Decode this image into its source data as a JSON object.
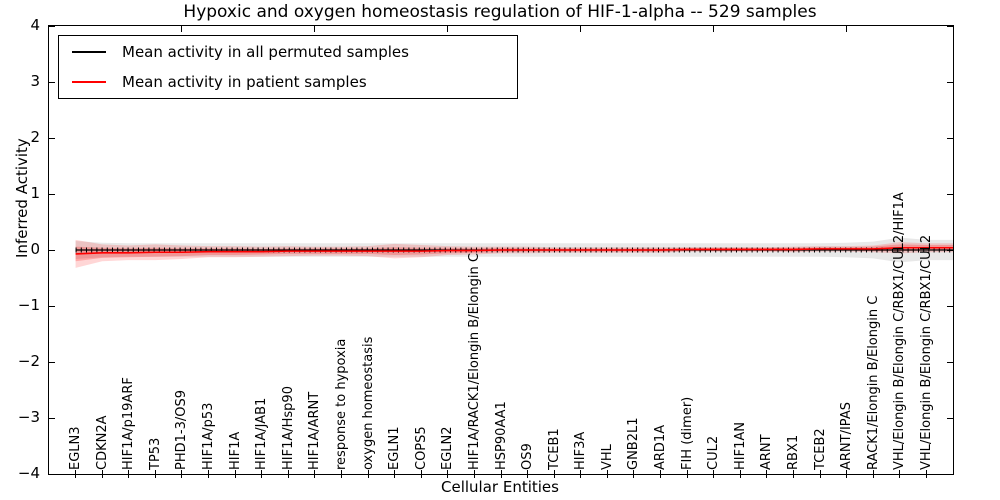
{
  "chart_data": {
    "type": "line",
    "title": "Hypoxic and oxygen homeostasis regulation of HIF-1-alpha -- 529 samples",
    "xlabel": "Cellular Entities",
    "ylabel": "Inferred Activity",
    "ylim": [
      -4,
      4
    ],
    "yticks": [
      "4",
      "3",
      "2",
      "1",
      "0",
      "−1",
      "−2",
      "−3",
      "−4"
    ],
    "grid": false,
    "legend_position": "upper left",
    "legend": [
      {
        "label": "Mean activity in all permuted samples",
        "color": "#000000"
      },
      {
        "label": "Mean activity in patient samples",
        "color": "#ff0000"
      }
    ],
    "categories": [
      "EGLN3",
      "CDKN2A",
      "HIF1A/p19ARF",
      "TP53",
      "PHD1-3/OS9",
      "HIF1A/p53",
      "HIF1A",
      "HIF1A/JAB1",
      "HIF1A/Hsp90",
      "HIF1A/ARNT",
      "response to hypoxia",
      "oxygen homeostasis",
      "EGLN1",
      "COPS5",
      "EGLN2",
      "HIF1A/RACK1/Elongin B/Elongin C",
      "HSP90AA1",
      "OS9",
      "TCEB1",
      "HIF3A",
      "VHL",
      "GNB2L1",
      "ARD1A",
      "FIH (dimer)",
      "CUL2",
      "HIF1AN",
      "ARNT",
      "RBX1",
      "TCEB2",
      "ARNT/IPAS",
      "RACK1/Elongin B/Elongin C",
      "VHL/Elongin B/Elongin C/RBX1/CUL2/HIF1A",
      "VHL/Elongin B/Elongin C/RBX1/CUL2"
    ],
    "series": [
      {
        "name": "Mean activity in all permuted samples",
        "color": "#000000",
        "band_color": "#d8d8d8",
        "band_opacity": 0.6,
        "values": [
          0,
          0,
          0,
          0,
          0,
          0,
          0,
          0,
          0,
          0,
          0,
          0,
          0,
          0,
          0,
          0,
          0,
          0,
          0,
          0,
          0,
          0,
          0,
          0,
          0,
          0,
          0,
          0,
          0,
          0,
          0,
          0,
          0
        ],
        "band": [
          0.16,
          0.13,
          0.12,
          0.12,
          0.12,
          0.12,
          0.12,
          0.12,
          0.12,
          0.12,
          0.12,
          0.12,
          0.12,
          0.12,
          0.12,
          0.12,
          0.12,
          0.12,
          0.12,
          0.12,
          0.12,
          0.12,
          0.12,
          0.12,
          0.12,
          0.12,
          0.12,
          0.12,
          0.12,
          0.13,
          0.15,
          0.22,
          0.18
        ]
      },
      {
        "name": "Mean activity in patient samples",
        "color": "#ff0000",
        "band_color": "#ff0000",
        "band_outer_opacity": 0.16,
        "band_inner_opacity": 0.22,
        "values": [
          -0.07,
          -0.05,
          -0.05,
          -0.04,
          -0.04,
          -0.03,
          -0.03,
          -0.03,
          -0.02,
          -0.02,
          -0.02,
          -0.02,
          -0.02,
          -0.02,
          -0.01,
          -0.01,
          0,
          0,
          0,
          0,
          0,
          0,
          0,
          0.01,
          0.01,
          0.01,
          0.01,
          0.01,
          0.02,
          0.02,
          0.02,
          0.04,
          0.04
        ],
        "band_outer": [
          0.25,
          0.15,
          0.13,
          0.14,
          0.12,
          0.1,
          0.1,
          0.09,
          0.09,
          0.08,
          0.08,
          0.09,
          0.13,
          0.11,
          0.08,
          0.07,
          0.06,
          0.06,
          0.05,
          0.05,
          0.05,
          0.05,
          0.05,
          0.04,
          0.04,
          0.04,
          0.04,
          0.05,
          0.05,
          0.05,
          0.06,
          0.1,
          0.08
        ],
        "band_inner": [
          0.13,
          0.09,
          0.08,
          0.08,
          0.07,
          0.06,
          0.06,
          0.05,
          0.05,
          0.05,
          0.05,
          0.05,
          0.07,
          0.06,
          0.05,
          0.04,
          0.04,
          0.03,
          0.03,
          0.03,
          0.03,
          0.03,
          0.03,
          0.03,
          0.03,
          0.03,
          0.03,
          0.03,
          0.03,
          0.03,
          0.04,
          0.06,
          0.05
        ]
      }
    ]
  }
}
